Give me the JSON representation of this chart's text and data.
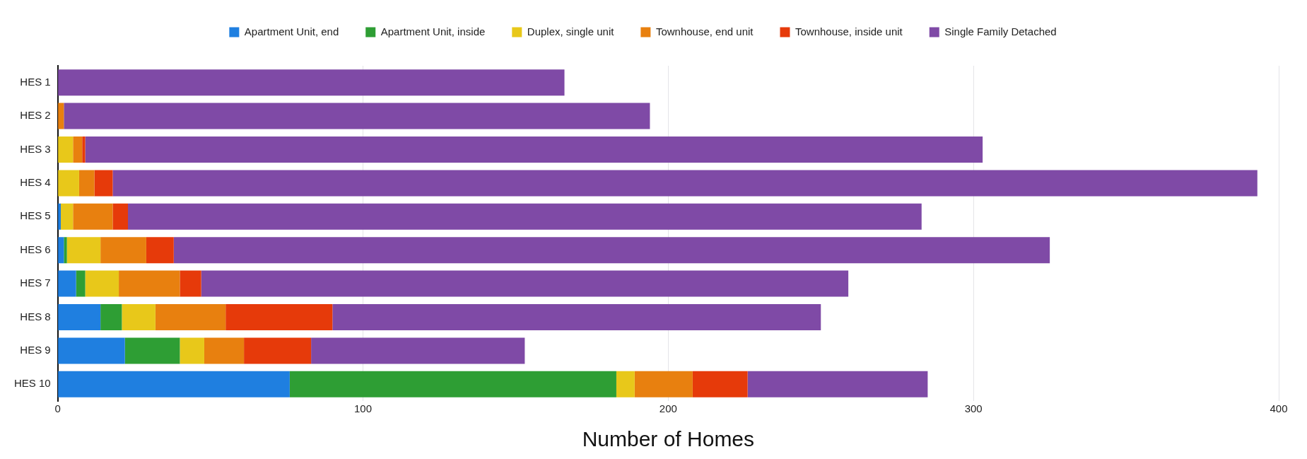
{
  "chart_data": {
    "type": "bar",
    "orientation": "horizontal",
    "stacked": true,
    "xlabel": "Number of Homes",
    "categories": [
      "HES 1",
      "HES 2",
      "HES 3",
      "HES 4",
      "HES 5",
      "HES 6",
      "HES 7",
      "HES 8",
      "HES 9",
      "HES 10"
    ],
    "series": [
      {
        "name": "Apartment Unit, end",
        "color": "#1f7fe0",
        "values": [
          0,
          0,
          0,
          0,
          1,
          2,
          6,
          14,
          22,
          76
        ]
      },
      {
        "name": "Apartment Unit, inside",
        "color": "#2e9e34",
        "values": [
          0,
          0,
          0,
          0,
          0,
          1,
          3,
          7,
          18,
          107
        ]
      },
      {
        "name": "Duplex, single unit",
        "color": "#e8c81a",
        "values": [
          0,
          0,
          5,
          7,
          4,
          11,
          11,
          11,
          8,
          6
        ]
      },
      {
        "name": "Townhouse, end unit",
        "color": "#e8800f",
        "values": [
          0,
          2,
          3,
          5,
          13,
          15,
          20,
          23,
          13,
          19
        ]
      },
      {
        "name": "Townhouse, inside unit",
        "color": "#e63a0a",
        "values": [
          0,
          0,
          1,
          6,
          5,
          9,
          7,
          35,
          22,
          18
        ]
      },
      {
        "name": "Single Family Detached",
        "color": "#7f4aa6",
        "values": [
          166,
          192,
          294,
          375,
          260,
          287,
          212,
          160,
          70,
          59
        ]
      }
    ],
    "xlim": [
      0,
      400
    ],
    "xticks": [
      0,
      100,
      200,
      300,
      400
    ],
    "grid": "x",
    "legend": "top"
  }
}
